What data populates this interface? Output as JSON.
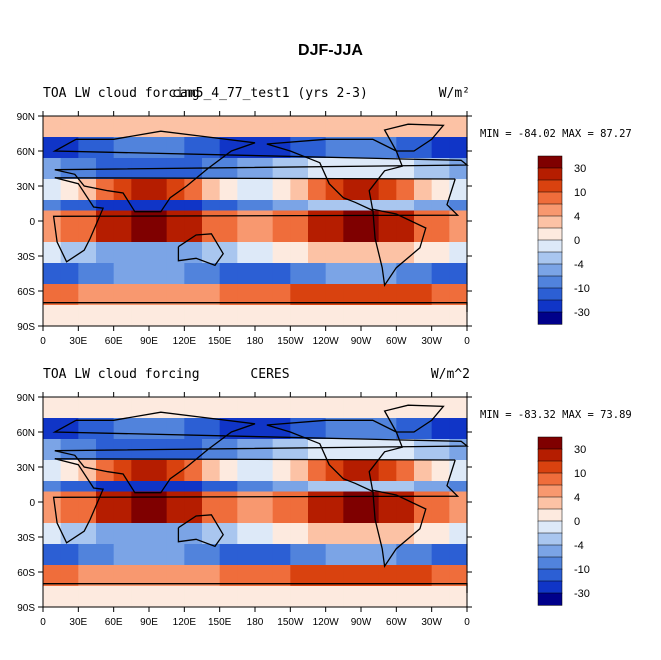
{
  "title": "DJF-JJA",
  "panels": [
    {
      "left_label": "TOA LW cloud forcing",
      "center_label": "cam5_4_77_test1 (yrs 2-3)",
      "right_label": "W/m²",
      "min_max": "MIN = -84.02 MAX =  87.27"
    },
    {
      "left_label": "TOA LW cloud forcing",
      "center_label": "CERES",
      "right_label": "W/m^2",
      "min_max": "MIN = -83.32 MAX =  73.89"
    }
  ],
  "axes": {
    "lat_ticks": [
      "90N",
      "60N",
      "30N",
      "0",
      "30S",
      "60S",
      "90S"
    ],
    "lon_ticks": [
      "0",
      "30E",
      "60E",
      "90E",
      "120E",
      "150E",
      "180",
      "150W",
      "120W",
      "90W",
      "60W",
      "30W",
      "0"
    ]
  },
  "colorbar": {
    "labels": [
      "30",
      "10",
      "4",
      "0",
      "-4",
      "-10",
      "-30"
    ],
    "colors": [
      "#7f0000",
      "#b51d00",
      "#d9420f",
      "#ef6d3b",
      "#f8986f",
      "#fcc2a5",
      "#fdeadf",
      "#dde9f8",
      "#a9c6ef",
      "#7ba4e6",
      "#5183dc",
      "#2c5fd4",
      "#1035c7",
      "#00008a"
    ]
  },
  "colors": {
    "land_outline": "#000000",
    "background": "#ffffff"
  }
}
